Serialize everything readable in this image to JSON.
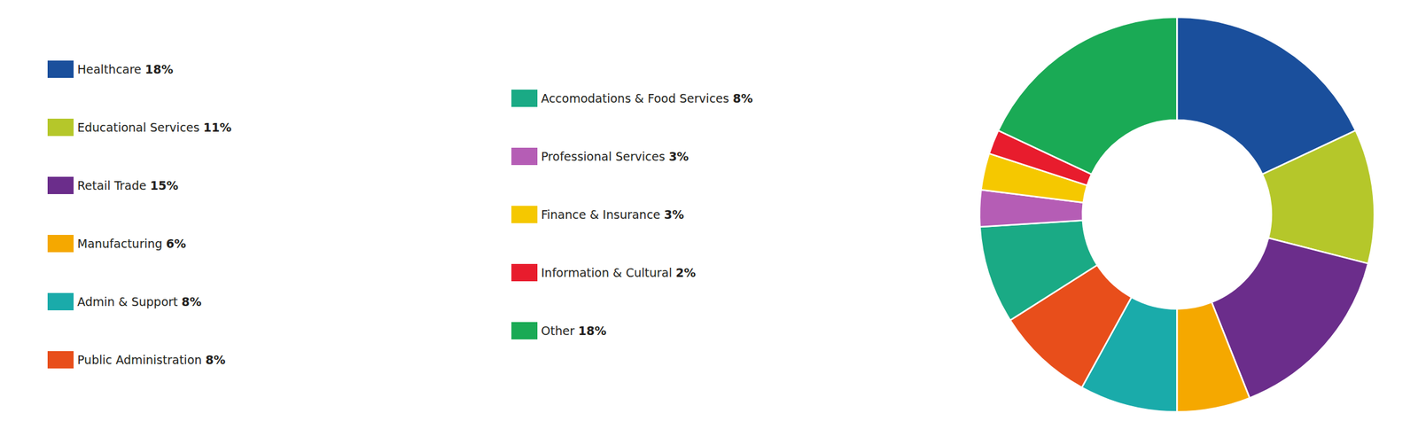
{
  "chart_data": {
    "type": "donut",
    "categories": [
      "Healthcare",
      "Educational Services",
      "Retail Trade",
      "Manufacturing",
      "Admin & Support",
      "Public Administration",
      "Accomodations & Food Services",
      "Professional Services",
      "Finance & Insurance",
      "Information & Cultural",
      "Other"
    ],
    "values": [
      18,
      11,
      15,
      6,
      8,
      8,
      8,
      3,
      3,
      2,
      18
    ],
    "value_labels": [
      "18%",
      "11%",
      "15%",
      "6%",
      "8%",
      "8%",
      "8%",
      "3%",
      "3%",
      "2%",
      "18%"
    ],
    "colors": [
      "#1a4f9c",
      "#b5c72a",
      "#6b2d8b",
      "#f5a800",
      "#1aabaa",
      "#e84e1b",
      "#1aaa85",
      "#b55db5",
      "#f5c800",
      "#e81c2d",
      "#1aaa55"
    ],
    "legend": "left"
  }
}
